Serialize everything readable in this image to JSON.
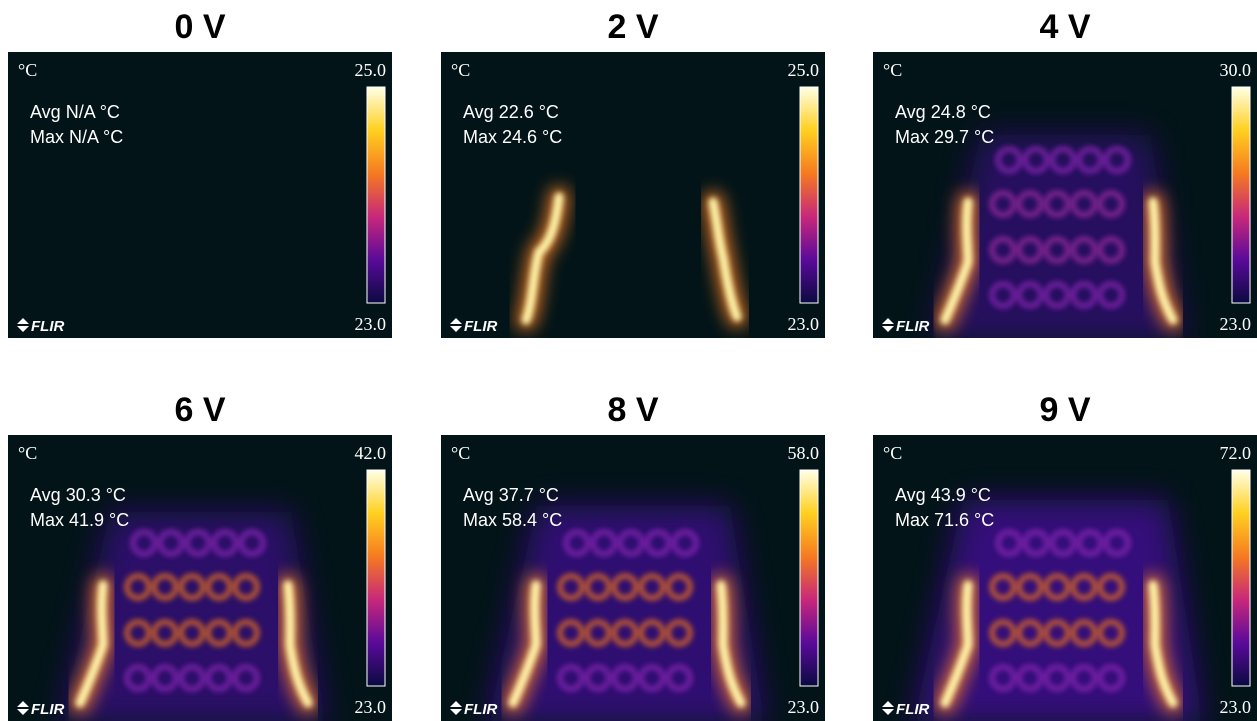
{
  "panels": [
    {
      "title": "0 V",
      "unit": "°C",
      "scale_max": "25.0",
      "scale_min": "23.0",
      "avg": "Avg N/A °C",
      "max": "Max N/A °C",
      "brand": "FLIR"
    },
    {
      "title": "2 V",
      "unit": "°C",
      "scale_max": "25.0",
      "scale_min": "23.0",
      "avg": "Avg 22.6 °C",
      "max": "Max 24.6 °C",
      "brand": "FLIR"
    },
    {
      "title": "4 V",
      "unit": "°C",
      "scale_max": "30.0",
      "scale_min": "23.0",
      "avg": "Avg 24.8 °C",
      "max": "Max 29.7 °C",
      "brand": "FLIR"
    },
    {
      "title": "6 V",
      "unit": "°C",
      "scale_max": "42.0",
      "scale_min": "23.0",
      "avg": "Avg 30.3 °C",
      "max": "Max 41.9 °C",
      "brand": "FLIR"
    },
    {
      "title": "8 V",
      "unit": "°C",
      "scale_max": "58.0",
      "scale_min": "23.0",
      "avg": "Avg 37.7 °C",
      "max": "Max 58.4 °C",
      "brand": "FLIR"
    },
    {
      "title": "9 V",
      "unit": "°C",
      "scale_max": "72.0",
      "scale_min": "23.0",
      "avg": "Avg 43.9 °C",
      "max": "Max 71.6 °C",
      "brand": "FLIR"
    }
  ]
}
